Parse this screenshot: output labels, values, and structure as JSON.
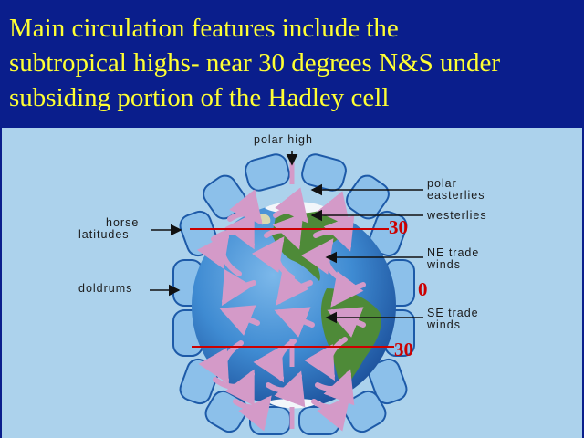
{
  "title": {
    "line1": "Main circulation features include the",
    "line2": "subtropical highs- near 30 degrees N&S under",
    "line3": "subsiding portion of the Hadley cell"
  },
  "diagram": {
    "labels": {
      "polar_high": "polar high",
      "polar_easterlies_1": "polar",
      "polar_easterlies_2": "easterlies",
      "westerlies": "westerlies",
      "horse_latitudes_1": "horse",
      "horse_latitudes_2": "latitudes",
      "ne_trade_winds_1": "NE trade",
      "ne_trade_winds_2": "winds",
      "doldrums": "doldrums",
      "se_trade_winds_1": "SE trade",
      "se_trade_winds_2": "winds"
    },
    "latitudes": {
      "north_30": "30",
      "equator": "0",
      "south_30": "30"
    },
    "colors": {
      "title_background": "#0a1e8c",
      "title_text": "#ffff33",
      "figure_background": "#acd2ec",
      "ocean": "#3f8bd2",
      "land": "#4e8a38",
      "cell_fill": "#8cc0ea",
      "wind_arrows": "#d49ac8",
      "latitude_lines": "#cc0000"
    }
  }
}
